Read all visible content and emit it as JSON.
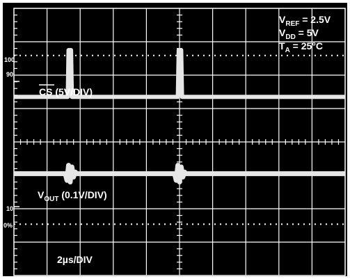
{
  "chart_data": {
    "type": "line",
    "title": "",
    "xlabel": "",
    "ylabel": "",
    "grid": true,
    "divisions": {
      "x": 10,
      "y": 8
    },
    "background_color": "#000000",
    "trace_color": "#e6e6e6",
    "grid_color": "#ffffff",
    "annotations": {
      "vref_main": "V",
      "vref_sub": "REF",
      "vref_val": " = 2.5V",
      "vdd_main": "V",
      "vdd_sub": "DD",
      "vdd_val": " = 5V",
      "ta_main": "T",
      "ta_sub": "A",
      "ta_val": " = 25°C",
      "cs_label": "CS",
      "cs_scale": " (5V/DIV)",
      "vout_main": "V",
      "vout_sub": "OUT",
      "vout_scale": " (0.1V/DIV)",
      "timebase": "2µs/DIV"
    },
    "markers": {
      "m100": "100",
      "m90": "90",
      "m10": "10",
      "m0": "0%"
    },
    "series": [
      {
        "name": "CS",
        "x": [
          0,
          6.3,
          6.5,
          6.6,
          6.9,
          7.0,
          7.1,
          19.5,
          19.8,
          19.9,
          20.2,
          20.3,
          20.4,
          40
        ],
        "y": [
          5.35,
          5.35,
          5.35,
          6.75,
          6.75,
          5.35,
          5.35,
          5.35,
          5.35,
          6.75,
          6.75,
          5.35,
          5.35,
          5.35
        ]
      },
      {
        "name": "VOUT",
        "x": [
          0,
          6.2,
          6.4,
          6.6,
          6.8,
          7.0,
          7.2,
          7.4,
          7.6,
          19.4,
          19.6,
          19.8,
          20.0,
          20.2,
          20.4,
          20.6,
          20.8,
          40
        ],
        "y": [
          3.05,
          3.05,
          2.85,
          3.3,
          2.8,
          3.25,
          2.95,
          3.1,
          3.05,
          3.05,
          2.85,
          3.3,
          2.8,
          3.25,
          2.95,
          3.1,
          3.05,
          3.05
        ]
      }
    ],
    "xlim": [
      0,
      40
    ],
    "ylim": [
      0,
      8
    ]
  }
}
